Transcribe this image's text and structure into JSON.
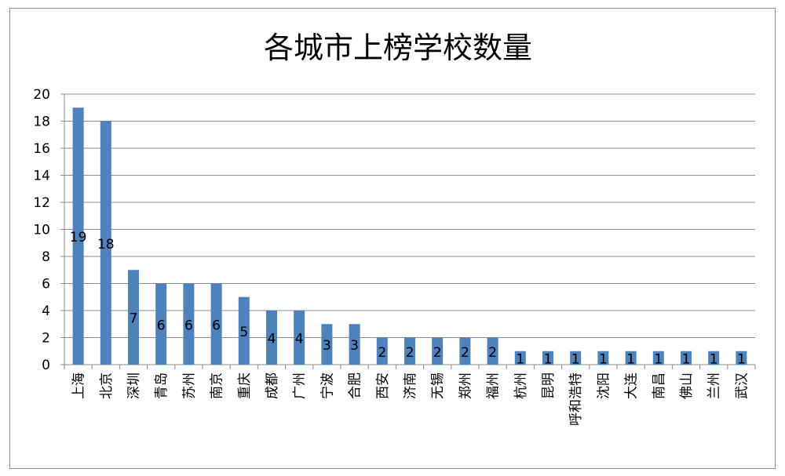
{
  "chart_data": {
    "type": "bar",
    "title": "各城市上榜学校数量",
    "xlabel": "",
    "ylabel": "",
    "ylim": [
      0,
      20
    ],
    "yticks": [
      0,
      2,
      4,
      6,
      8,
      10,
      12,
      14,
      16,
      18,
      20
    ],
    "grid": true,
    "legend": "none",
    "bar_color": "#4f81bd",
    "categories": [
      "上海",
      "北京",
      "深圳",
      "青岛",
      "苏州",
      "南京",
      "重庆",
      "成都",
      "广州",
      "宁波",
      "合肥",
      "西安",
      "济南",
      "无锡",
      "郑州",
      "福州",
      "杭州",
      "昆明",
      "呼和浩特",
      "沈阳",
      "大连",
      "南昌",
      "佛山",
      "兰州",
      "武汉"
    ],
    "values": [
      19,
      18,
      7,
      6,
      6,
      6,
      5,
      4,
      4,
      3,
      3,
      2,
      2,
      2,
      2,
      2,
      1,
      1,
      1,
      1,
      1,
      1,
      1,
      1,
      1
    ],
    "data_labels": [
      "19",
      "18",
      "7",
      "6",
      "6",
      "6",
      "5",
      "4",
      "4",
      "3",
      "3",
      "2",
      "2",
      "2",
      "2",
      "2",
      "1",
      "1",
      "1",
      "1",
      "1",
      "1",
      "1",
      "1",
      "1"
    ]
  }
}
